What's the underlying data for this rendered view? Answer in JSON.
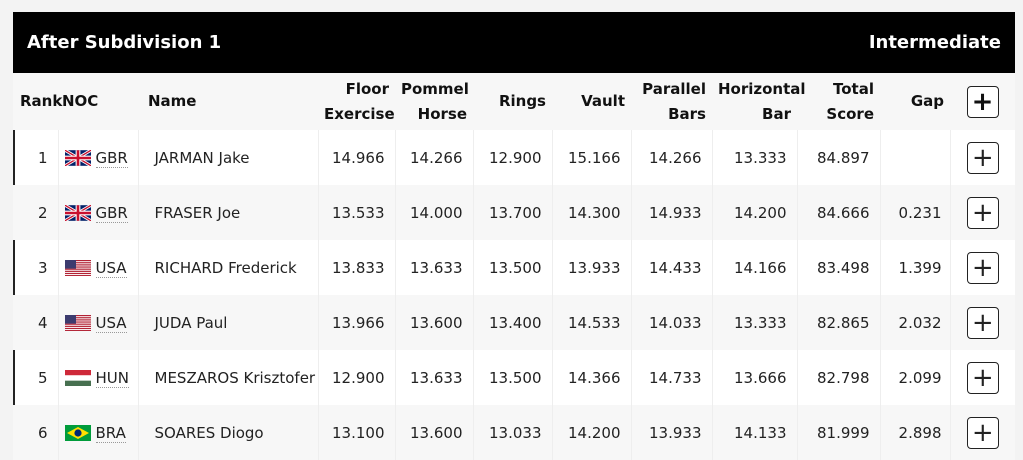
{
  "header": {
    "title": "After Subdivision 1",
    "phase": "Intermediate"
  },
  "columns": {
    "rank": "Rank",
    "noc": "NOC",
    "name": "Name",
    "floor": "Floor\nExercise",
    "pommel": "Pommel\nHorse",
    "rings": "Rings",
    "vault": "Vault",
    "parallel": "Parallel\nBars",
    "horizontal": "Horizontal\nBar",
    "total": "Total\nScore",
    "gap": "Gap",
    "expand": "+"
  },
  "rows": [
    {
      "rank": "1",
      "noc": "GBR",
      "flag": "gbr",
      "name": "JARMAN Jake",
      "floor": "14.966",
      "pommel": "14.266",
      "rings": "12.900",
      "vault": "15.166",
      "parallel": "14.266",
      "horizontal": "13.333",
      "total": "84.897",
      "gap": "",
      "expand": "+"
    },
    {
      "rank": "2",
      "noc": "GBR",
      "flag": "gbr",
      "name": "FRASER Joe",
      "floor": "13.533",
      "pommel": "14.000",
      "rings": "13.700",
      "vault": "14.300",
      "parallel": "14.933",
      "horizontal": "14.200",
      "total": "84.666",
      "gap": "0.231",
      "expand": "+"
    },
    {
      "rank": "3",
      "noc": "USA",
      "flag": "usa",
      "name": "RICHARD Frederick",
      "floor": "13.833",
      "pommel": "13.633",
      "rings": "13.500",
      "vault": "13.933",
      "parallel": "14.433",
      "horizontal": "14.166",
      "total": "83.498",
      "gap": "1.399",
      "expand": "+"
    },
    {
      "rank": "4",
      "noc": "USA",
      "flag": "usa",
      "name": "JUDA Paul",
      "floor": "13.966",
      "pommel": "13.600",
      "rings": "13.400",
      "vault": "14.533",
      "parallel": "14.033",
      "horizontal": "13.333",
      "total": "82.865",
      "gap": "2.032",
      "expand": "+"
    },
    {
      "rank": "5",
      "noc": "HUN",
      "flag": "hun",
      "name": "MESZAROS Krisztofer",
      "floor": "12.900",
      "pommel": "13.633",
      "rings": "13.500",
      "vault": "14.366",
      "parallel": "14.733",
      "horizontal": "13.666",
      "total": "82.798",
      "gap": "2.099",
      "expand": "+"
    },
    {
      "rank": "6",
      "noc": "BRA",
      "flag": "bra",
      "name": "SOARES Diogo",
      "floor": "13.100",
      "pommel": "13.600",
      "rings": "13.033",
      "vault": "14.200",
      "parallel": "13.933",
      "horizontal": "14.133",
      "total": "81.999",
      "gap": "2.898",
      "expand": "+"
    }
  ]
}
